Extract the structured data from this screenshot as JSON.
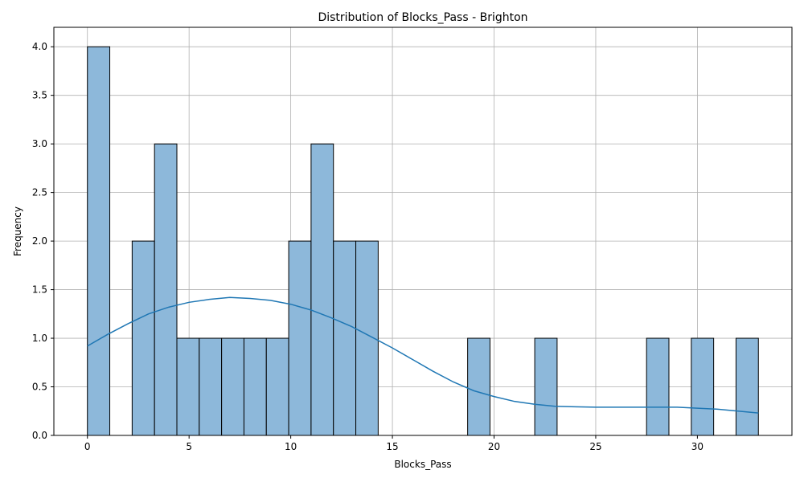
{
  "chart_data": {
    "type": "bar",
    "title": "Distribution of Blocks_Pass - Brighton",
    "xlabel": "Blocks_Pass",
    "ylabel": "Frequency",
    "xlim": [
      -1.65,
      34.65
    ],
    "ylim": [
      0,
      4.2
    ],
    "grid": true,
    "bar_color": "#8db8da",
    "bar_edge_color": "#000000",
    "kde_color": "#1f77b4",
    "bin_width": 1.1,
    "bins": [
      {
        "start": 0.0,
        "end": 1.1,
        "count": 4
      },
      {
        "start": 2.2,
        "end": 3.3,
        "count": 2
      },
      {
        "start": 3.3,
        "end": 4.4,
        "count": 3
      },
      {
        "start": 4.4,
        "end": 5.5,
        "count": 1
      },
      {
        "start": 5.5,
        "end": 6.6,
        "count": 1
      },
      {
        "start": 6.6,
        "end": 7.7,
        "count": 1
      },
      {
        "start": 7.7,
        "end": 8.8,
        "count": 1
      },
      {
        "start": 8.8,
        "end": 9.9,
        "count": 1
      },
      {
        "start": 9.9,
        "end": 11.0,
        "count": 2
      },
      {
        "start": 11.0,
        "end": 12.1,
        "count": 3
      },
      {
        "start": 12.1,
        "end": 13.2,
        "count": 2
      },
      {
        "start": 13.2,
        "end": 14.3,
        "count": 2
      },
      {
        "start": 18.7,
        "end": 19.8,
        "count": 1
      },
      {
        "start": 22.0,
        "end": 23.1,
        "count": 1
      },
      {
        "start": 27.5,
        "end": 28.6,
        "count": 1
      },
      {
        "start": 29.7,
        "end": 30.8,
        "count": 1
      },
      {
        "start": 31.9,
        "end": 33.0,
        "count": 1
      }
    ],
    "x_ticks": [
      0,
      5,
      10,
      15,
      20,
      25,
      30
    ],
    "x_tick_labels": [
      "0",
      "5",
      "10",
      "15",
      "20",
      "25",
      "30"
    ],
    "y_ticks": [
      0,
      0.5,
      1,
      1.5,
      2,
      2.5,
      3,
      3.5,
      4
    ],
    "y_tick_labels": [
      "0.0",
      "0.5",
      "1.0",
      "1.5",
      "2.0",
      "2.5",
      "3.0",
      "3.5",
      "4.0"
    ],
    "kde": {
      "x": [
        0,
        1,
        2,
        3,
        4,
        5,
        6,
        7,
        8,
        9,
        10,
        11,
        12,
        13,
        14,
        15,
        16,
        17,
        18,
        19,
        20,
        21,
        22,
        23,
        24,
        25,
        26,
        27,
        28,
        29,
        30,
        31,
        32,
        33
      ],
      "y": [
        0.92,
        1.04,
        1.15,
        1.25,
        1.32,
        1.37,
        1.4,
        1.42,
        1.41,
        1.39,
        1.35,
        1.29,
        1.21,
        1.12,
        1.01,
        0.9,
        0.78,
        0.66,
        0.55,
        0.46,
        0.4,
        0.35,
        0.32,
        0.3,
        0.295,
        0.29,
        0.29,
        0.29,
        0.29,
        0.29,
        0.28,
        0.27,
        0.25,
        0.23
      ]
    }
  }
}
